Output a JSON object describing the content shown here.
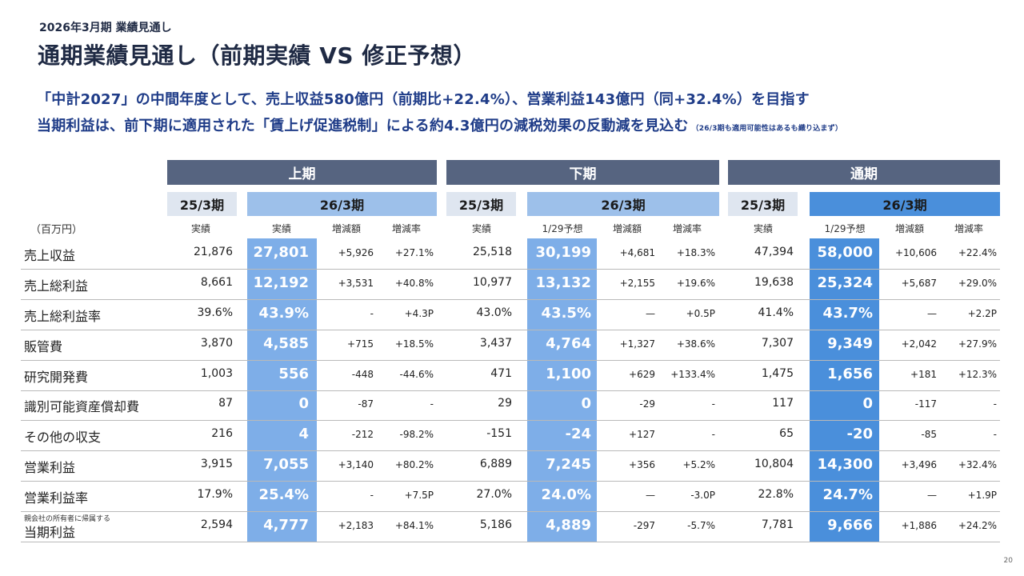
{
  "header": {
    "subtitle": "2026年3月期 業績見通し",
    "title": "通期業績見通し（前期実績 VS 修正予想）"
  },
  "headline": {
    "line1": "「中計2027」の中間年度として、売上収益580億円（前期比+22.4%）、営業利益143億円（同+32.4%）を目指す",
    "line2": "当期利益は、前下期に適用された「賃上げ促進税制」による約4.3億円の減税効果の反動減を見込む",
    "line2_note": "（26/3期も適用可能性はあるも織り込まず）"
  },
  "table": {
    "unit": "（百万円）",
    "groups": [
      "上期",
      "下期",
      "通期"
    ],
    "years": {
      "prev": "25/3期",
      "cur": "26/3期"
    },
    "subheaders": {
      "h1": [
        "実績",
        "実績",
        "増減額",
        "増減率"
      ],
      "h2": [
        "実績",
        "1/29予想",
        "増減額",
        "増減率"
      ],
      "fy": [
        "実績",
        "1/29予想",
        "増減額",
        "増減率"
      ]
    },
    "row_prefix_last": "親会社の所有者に帰属する",
    "rows": [
      {
        "label": "売上収益",
        "h1": [
          "21,876",
          "27,801",
          "+5,926",
          "+27.1%"
        ],
        "h2": [
          "25,518",
          "30,199",
          "+4,681",
          "+18.3%"
        ],
        "fy": [
          "47,394",
          "58,000",
          "+10,606",
          "+22.4%"
        ]
      },
      {
        "label": "売上総利益",
        "h1": [
          "8,661",
          "12,192",
          "+3,531",
          "+40.8%"
        ],
        "h2": [
          "10,977",
          "13,132",
          "+2,155",
          "+19.6%"
        ],
        "fy": [
          "19,638",
          "25,324",
          "+5,687",
          "+29.0%"
        ]
      },
      {
        "label": "売上総利益率",
        "h1": [
          "39.6%",
          "43.9%",
          "-",
          "+4.3P"
        ],
        "h2": [
          "43.0%",
          "43.5%",
          "—",
          "+0.5P"
        ],
        "fy": [
          "41.4%",
          "43.7%",
          "—",
          "+2.2P"
        ]
      },
      {
        "label": "販管費",
        "h1": [
          "3,870",
          "4,585",
          "+715",
          "+18.5%"
        ],
        "h2": [
          "3,437",
          "4,764",
          "+1,327",
          "+38.6%"
        ],
        "fy": [
          "7,307",
          "9,349",
          "+2,042",
          "+27.9%"
        ]
      },
      {
        "label": "研究開発費",
        "h1": [
          "1,003",
          "556",
          "-448",
          "-44.6%"
        ],
        "h2": [
          "471",
          "1,100",
          "+629",
          "+133.4%"
        ],
        "fy": [
          "1,475",
          "1,656",
          "+181",
          "+12.3%"
        ]
      },
      {
        "label": "識別可能資産償却費",
        "h1": [
          "87",
          "0",
          "-87",
          "-"
        ],
        "h2": [
          "29",
          "0",
          "-29",
          "-"
        ],
        "fy": [
          "117",
          "0",
          "-117",
          "-"
        ]
      },
      {
        "label": "その他の収支",
        "h1": [
          "216",
          "4",
          "-212",
          "-98.2%"
        ],
        "h2": [
          "-151",
          "-24",
          "+127",
          "-"
        ],
        "fy": [
          "65",
          "-20",
          "-85",
          "-"
        ]
      },
      {
        "label": "営業利益",
        "h1": [
          "3,915",
          "7,055",
          "+3,140",
          "+80.2%"
        ],
        "h2": [
          "6,889",
          "7,245",
          "+356",
          "+5.2%"
        ],
        "fy": [
          "10,804",
          "14,300",
          "+3,496",
          "+32.4%"
        ]
      },
      {
        "label": "営業利益率",
        "h1": [
          "17.9%",
          "25.4%",
          "-",
          "+7.5P"
        ],
        "h2": [
          "27.0%",
          "24.0%",
          "—",
          "-3.0P"
        ],
        "fy": [
          "22.8%",
          "24.7%",
          "—",
          "+1.9P"
        ]
      },
      {
        "label": "当期利益",
        "h1": [
          "2,594",
          "4,777",
          "+2,183",
          "+84.1%"
        ],
        "h2": [
          "5,186",
          "4,889",
          "-297",
          "-5.7%"
        ],
        "fy": [
          "7,781",
          "9,666",
          "+1,886",
          "+24.2%"
        ]
      }
    ]
  },
  "page_number": "20"
}
